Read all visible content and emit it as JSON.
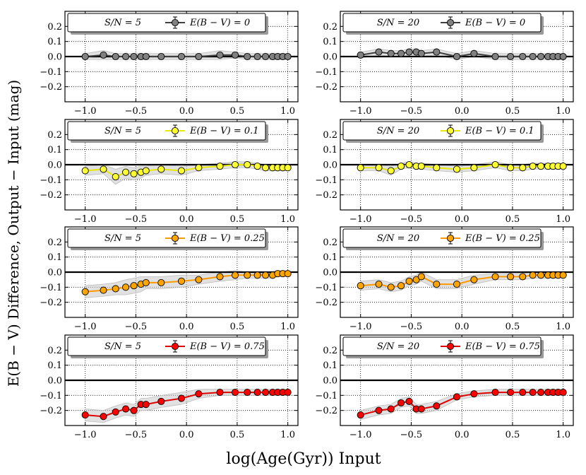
{
  "figure": {
    "ylabel": "E(B − V) Difference, Output − Input (mag)",
    "xlabel": "log(Age(Gyr)) Input"
  },
  "chart_data": {
    "type": "line",
    "layout": "4 rows x 2 columns",
    "xlim": [
      -1.2,
      1.1
    ],
    "ylim": [
      -0.3,
      0.3
    ],
    "xticks": [
      "−1.0",
      "−0.5",
      "0.0",
      "0.5",
      "1.0"
    ],
    "xtick_values": [
      -1.0,
      -0.5,
      0.0,
      0.5,
      1.0
    ],
    "yticks": [
      "0.2",
      "0.1",
      "0.0",
      "−0.1",
      "−0.2"
    ],
    "ytick_values": [
      0.2,
      0.1,
      0.0,
      -0.1,
      -0.2
    ],
    "grid": true,
    "reference_line_y": 0.0,
    "x": [
      -1.0,
      -0.82,
      -0.7,
      -0.6,
      -0.52,
      -0.45,
      -0.4,
      -0.25,
      -0.05,
      0.12,
      0.33,
      0.48,
      0.6,
      0.7,
      0.78,
      0.85,
      0.9,
      0.95,
      1.0
    ],
    "panels": [
      {
        "sn_label": "S/N = 5",
        "legend": "E(B − V) = 0",
        "color": "#808080",
        "line": "#404040",
        "values": [
          0.0,
          0.01,
          0.0,
          0.0,
          0.0,
          0.0,
          0.0,
          0.0,
          0.0,
          0.0,
          0.01,
          0.01,
          0.0,
          0.0,
          0.0,
          0.0,
          0.0,
          0.0,
          0.0
        ],
        "band": [
          0.02,
          0.03,
          0.02,
          0.02,
          0.02,
          0.02,
          0.02,
          0.02,
          0.02,
          0.02,
          0.03,
          0.02,
          0.02,
          0.02,
          0.02,
          0.02,
          0.02,
          0.02,
          0.02
        ]
      },
      {
        "sn_label": "S/N = 20",
        "legend": "E(B − V) = 0",
        "color": "#808080",
        "line": "#404040",
        "values": [
          0.01,
          0.03,
          0.02,
          0.02,
          0.03,
          0.03,
          0.02,
          0.03,
          0.0,
          0.02,
          0.0,
          0.0,
          0.0,
          0.0,
          0.0,
          0.0,
          0.0,
          0.0,
          0.0
        ],
        "band": [
          0.02,
          0.02,
          0.02,
          0.02,
          0.02,
          0.02,
          0.02,
          0.02,
          0.02,
          0.02,
          0.02,
          0.02,
          0.02,
          0.02,
          0.02,
          0.02,
          0.02,
          0.02,
          0.02
        ]
      },
      {
        "sn_label": "S/N = 5",
        "legend": "E(B − V) = 0.1",
        "color": "#ffff33",
        "line": "#e8e800",
        "values": [
          -0.04,
          -0.03,
          -0.08,
          -0.05,
          -0.06,
          -0.05,
          -0.04,
          -0.03,
          -0.04,
          -0.02,
          -0.01,
          0.0,
          0.0,
          -0.01,
          -0.02,
          -0.02,
          -0.02,
          -0.02,
          -0.02
        ],
        "band": [
          0.03,
          0.03,
          0.05,
          0.04,
          0.04,
          0.04,
          0.03,
          0.03,
          0.03,
          0.02,
          0.02,
          0.02,
          0.02,
          0.02,
          0.02,
          0.02,
          0.02,
          0.02,
          0.02
        ]
      },
      {
        "sn_label": "S/N = 20",
        "legend": "E(B − V) = 0.1",
        "color": "#ffff33",
        "line": "#e8e800",
        "values": [
          -0.02,
          -0.02,
          -0.04,
          -0.01,
          0.0,
          -0.01,
          -0.01,
          -0.02,
          -0.03,
          -0.02,
          0.0,
          -0.02,
          -0.02,
          -0.01,
          -0.01,
          -0.01,
          -0.01,
          -0.01,
          -0.01
        ],
        "band": [
          0.02,
          0.02,
          0.03,
          0.02,
          0.02,
          0.02,
          0.02,
          0.02,
          0.02,
          0.02,
          0.02,
          0.02,
          0.02,
          0.02,
          0.02,
          0.02,
          0.02,
          0.02,
          0.02
        ]
      },
      {
        "sn_label": "S/N = 5",
        "legend": "E(B − V) = 0.25",
        "color": "#ffa500",
        "line": "#ff9900",
        "values": [
          -0.13,
          -0.12,
          -0.11,
          -0.1,
          -0.09,
          -0.08,
          -0.07,
          -0.07,
          -0.06,
          -0.05,
          -0.03,
          -0.02,
          -0.02,
          -0.02,
          -0.02,
          -0.02,
          -0.01,
          -0.01,
          -0.01
        ],
        "band": [
          0.04,
          0.04,
          0.04,
          0.05,
          0.05,
          0.05,
          0.04,
          0.04,
          0.04,
          0.03,
          0.03,
          0.03,
          0.02,
          0.02,
          0.02,
          0.02,
          0.02,
          0.02,
          0.02
        ]
      },
      {
        "sn_label": "S/N = 20",
        "legend": "E(B − V) = 0.25",
        "color": "#ffa500",
        "line": "#ff9900",
        "values": [
          -0.09,
          -0.08,
          -0.1,
          -0.09,
          -0.06,
          -0.05,
          -0.03,
          -0.08,
          -0.08,
          -0.05,
          -0.03,
          -0.03,
          -0.03,
          -0.02,
          -0.02,
          -0.02,
          -0.02,
          -0.02,
          -0.02
        ],
        "band": [
          0.03,
          0.03,
          0.03,
          0.03,
          0.03,
          0.03,
          0.03,
          0.03,
          0.03,
          0.03,
          0.02,
          0.02,
          0.02,
          0.02,
          0.02,
          0.02,
          0.02,
          0.02,
          0.02
        ]
      },
      {
        "sn_label": "S/N = 5",
        "legend": "E(B − V) = 0.75",
        "color": "#ff0000",
        "line": "#e00000",
        "values": [
          -0.23,
          -0.24,
          -0.21,
          -0.19,
          -0.2,
          -0.16,
          -0.16,
          -0.14,
          -0.12,
          -0.09,
          -0.08,
          -0.08,
          -0.08,
          -0.08,
          -0.08,
          -0.08,
          -0.08,
          -0.08,
          -0.08
        ],
        "band": [
          0.04,
          0.04,
          0.04,
          0.04,
          0.04,
          0.04,
          0.04,
          0.04,
          0.04,
          0.03,
          0.02,
          0.02,
          0.02,
          0.02,
          0.02,
          0.02,
          0.02,
          0.02,
          0.02
        ]
      },
      {
        "sn_label": "S/N = 20",
        "legend": "E(B − V) = 0.75",
        "color": "#ff0000",
        "line": "#e00000",
        "values": [
          -0.23,
          -0.2,
          -0.19,
          -0.15,
          -0.14,
          -0.19,
          -0.19,
          -0.17,
          -0.11,
          -0.09,
          -0.08,
          -0.08,
          -0.08,
          -0.08,
          -0.08,
          -0.08,
          -0.08,
          -0.08,
          -0.08
        ],
        "band": [
          0.03,
          0.03,
          0.03,
          0.03,
          0.03,
          0.03,
          0.03,
          0.03,
          0.02,
          0.02,
          0.02,
          0.02,
          0.02,
          0.02,
          0.02,
          0.02,
          0.02,
          0.02,
          0.02
        ]
      }
    ]
  }
}
